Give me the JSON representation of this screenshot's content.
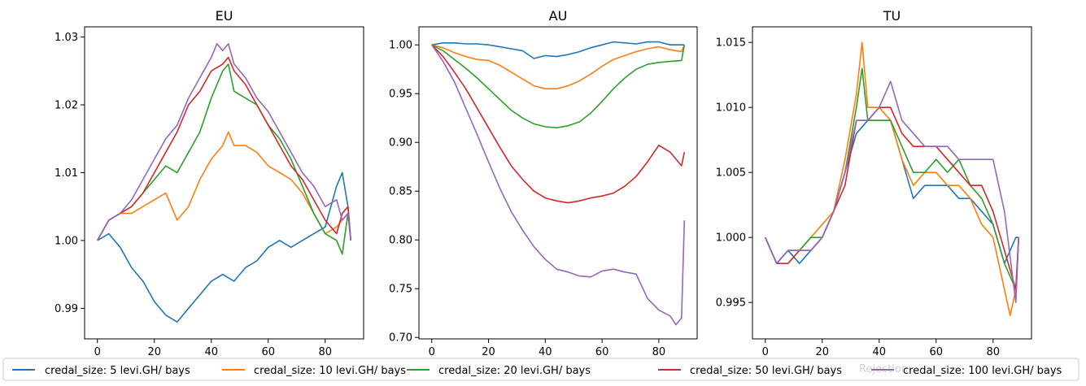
{
  "colors": [
    "#1f77b4",
    "#ff7f0e",
    "#2ca02c",
    "#d62728",
    "#9467bd"
  ],
  "legend": {
    "entries": [
      "credal_size: 5 levi.GH/ bays",
      "credal_size: 10 levi.GH/ bays",
      "credal_size: 20 levi.GH/ bays",
      "credal_size: 50 levi.GH/ bays",
      "credal_size: 100 levi.GH/ bays"
    ],
    "hidden_xlabel": "Rejection"
  },
  "chart_data": [
    {
      "type": "line",
      "title": "EU",
      "xlabel": "",
      "ylabel": "",
      "xlim": [
        -4.5,
        93.5
      ],
      "ylim": [
        0.9855,
        1.0315
      ],
      "xticks": [
        0,
        20,
        40,
        60,
        80
      ],
      "yticks": [
        0.99,
        1.0,
        1.01,
        1.02,
        1.03
      ],
      "ytick_labels": [
        "0.99",
        "1.00",
        "1.01",
        "1.02",
        "1.03"
      ],
      "grid": false,
      "series": [
        {
          "name": "credal_size: 5 levi.GH/ bays",
          "x": [
            0,
            4,
            8,
            12,
            16,
            20,
            24,
            28,
            32,
            36,
            40,
            44,
            48,
            52,
            56,
            60,
            64,
            68,
            72,
            76,
            80,
            84,
            86,
            88,
            89
          ],
          "y": [
            1.0,
            1.001,
            0.999,
            0.996,
            0.994,
            0.991,
            0.989,
            0.988,
            0.99,
            0.992,
            0.994,
            0.995,
            0.994,
            0.996,
            0.997,
            0.999,
            1.0,
            0.999,
            1.0,
            1.001,
            1.002,
            1.008,
            1.01,
            1.005,
            1.0
          ]
        },
        {
          "name": "credal_size: 10 levi.GH/ bays",
          "x": [
            0,
            4,
            8,
            12,
            16,
            20,
            24,
            28,
            32,
            36,
            40,
            44,
            46,
            48,
            52,
            56,
            60,
            64,
            68,
            72,
            76,
            80,
            84,
            86,
            88,
            89
          ],
          "y": [
            1.0,
            1.003,
            1.004,
            1.004,
            1.005,
            1.006,
            1.007,
            1.003,
            1.005,
            1.009,
            1.012,
            1.014,
            1.016,
            1.014,
            1.014,
            1.013,
            1.011,
            1.01,
            1.009,
            1.007,
            1.004,
            1.001,
            1.002,
            1.003,
            1.004,
            1.0
          ]
        },
        {
          "name": "credal_size: 20 levi.GH/ bays",
          "x": [
            0,
            4,
            8,
            12,
            16,
            20,
            24,
            28,
            32,
            36,
            40,
            44,
            46,
            48,
            52,
            56,
            60,
            64,
            68,
            72,
            76,
            80,
            84,
            86,
            88,
            89
          ],
          "y": [
            1.0,
            1.003,
            1.004,
            1.005,
            1.007,
            1.009,
            1.011,
            1.01,
            1.013,
            1.016,
            1.021,
            1.025,
            1.026,
            1.022,
            1.021,
            1.02,
            1.017,
            1.015,
            1.012,
            1.008,
            1.004,
            1.001,
            1.0,
            0.998,
            1.004,
            1.0
          ]
        },
        {
          "name": "credal_size: 50 levi.GH/ bays",
          "x": [
            0,
            4,
            8,
            12,
            16,
            20,
            24,
            28,
            32,
            36,
            40,
            44,
            46,
            48,
            52,
            56,
            60,
            64,
            68,
            72,
            76,
            80,
            84,
            86,
            88,
            89
          ],
          "y": [
            1.0,
            1.003,
            1.004,
            1.005,
            1.007,
            1.01,
            1.013,
            1.016,
            1.02,
            1.022,
            1.025,
            1.026,
            1.027,
            1.025,
            1.023,
            1.02,
            1.017,
            1.014,
            1.011,
            1.009,
            1.006,
            1.003,
            1.001,
            1.004,
            1.005,
            1.0
          ]
        },
        {
          "name": "credal_size: 100 levi.GH/ bays",
          "x": [
            0,
            4,
            8,
            12,
            16,
            20,
            24,
            28,
            32,
            36,
            40,
            42,
            44,
            46,
            48,
            52,
            56,
            60,
            64,
            68,
            72,
            76,
            80,
            84,
            86,
            88,
            89
          ],
          "y": [
            1.0,
            1.003,
            1.004,
            1.006,
            1.009,
            1.012,
            1.015,
            1.017,
            1.021,
            1.024,
            1.027,
            1.029,
            1.028,
            1.029,
            1.026,
            1.024,
            1.021,
            1.019,
            1.016,
            1.013,
            1.01,
            1.008,
            1.005,
            1.006,
            1.003,
            1.004,
            1.0
          ]
        }
      ]
    },
    {
      "type": "line",
      "title": "AU",
      "xlabel": "",
      "ylabel": "",
      "xlim": [
        -4.5,
        93.5
      ],
      "ylim": [
        0.6985,
        1.0185
      ],
      "xticks": [
        0,
        20,
        40,
        60,
        80
      ],
      "yticks": [
        0.7,
        0.75,
        0.8,
        0.85,
        0.9,
        0.95,
        1.0
      ],
      "ytick_labels": [
        "0.70",
        "0.75",
        "0.80",
        "0.85",
        "0.90",
        "0.95",
        "1.00"
      ],
      "grid": false,
      "series": [
        {
          "name": "credal_size: 5 levi.GH/ bays",
          "x": [
            0,
            4,
            8,
            12,
            16,
            20,
            24,
            28,
            32,
            36,
            40,
            44,
            48,
            52,
            56,
            60,
            64,
            68,
            72,
            76,
            80,
            84,
            88,
            89
          ],
          "y": [
            1.0,
            1.002,
            1.002,
            1.001,
            1.001,
            1.0,
            0.998,
            0.996,
            0.994,
            0.986,
            0.989,
            0.988,
            0.99,
            0.993,
            0.997,
            1.0,
            1.003,
            1.002,
            1.001,
            1.003,
            1.003,
            1.0,
            1.0,
            1.0
          ]
        },
        {
          "name": "credal_size: 10 levi.GH/ bays",
          "x": [
            0,
            4,
            8,
            12,
            16,
            20,
            24,
            28,
            32,
            36,
            40,
            44,
            48,
            52,
            56,
            60,
            64,
            68,
            72,
            76,
            80,
            84,
            88,
            89
          ],
          "y": [
            1.0,
            0.997,
            0.992,
            0.988,
            0.985,
            0.984,
            0.979,
            0.972,
            0.965,
            0.958,
            0.955,
            0.955,
            0.958,
            0.963,
            0.97,
            0.978,
            0.985,
            0.989,
            0.993,
            0.996,
            0.998,
            0.995,
            0.993,
            1.0
          ]
        },
        {
          "name": "credal_size: 20 levi.GH/ bays",
          "x": [
            0,
            4,
            8,
            12,
            16,
            20,
            24,
            28,
            32,
            36,
            40,
            44,
            48,
            52,
            56,
            60,
            64,
            68,
            72,
            76,
            80,
            84,
            88,
            89
          ],
          "y": [
            1.0,
            0.994,
            0.985,
            0.976,
            0.966,
            0.955,
            0.944,
            0.933,
            0.925,
            0.919,
            0.916,
            0.915,
            0.917,
            0.921,
            0.93,
            0.942,
            0.955,
            0.966,
            0.975,
            0.98,
            0.982,
            0.983,
            0.984,
            1.0
          ]
        },
        {
          "name": "credal_size: 50 levi.GH/ bays",
          "x": [
            0,
            4,
            8,
            12,
            16,
            20,
            24,
            28,
            32,
            36,
            40,
            44,
            48,
            52,
            56,
            60,
            64,
            68,
            72,
            76,
            80,
            84,
            88,
            89
          ],
          "y": [
            1.0,
            0.988,
            0.972,
            0.955,
            0.935,
            0.915,
            0.895,
            0.876,
            0.862,
            0.85,
            0.843,
            0.84,
            0.838,
            0.84,
            0.843,
            0.845,
            0.848,
            0.855,
            0.865,
            0.88,
            0.897,
            0.89,
            0.876,
            0.89
          ]
        },
        {
          "name": "credal_size: 100 levi.GH/ bays",
          "x": [
            0,
            4,
            8,
            12,
            16,
            20,
            24,
            28,
            32,
            36,
            40,
            44,
            48,
            52,
            56,
            60,
            64,
            68,
            72,
            76,
            80,
            84,
            86,
            88,
            89
          ],
          "y": [
            1.0,
            0.983,
            0.962,
            0.935,
            0.908,
            0.88,
            0.853,
            0.829,
            0.81,
            0.793,
            0.78,
            0.77,
            0.767,
            0.763,
            0.762,
            0.768,
            0.77,
            0.767,
            0.765,
            0.74,
            0.728,
            0.722,
            0.713,
            0.72,
            0.82
          ]
        }
      ]
    },
    {
      "type": "line",
      "title": "TU",
      "xlabel": "",
      "ylabel": "",
      "xlim": [
        -4.5,
        93.5
      ],
      "ylim": [
        0.9922,
        1.0162
      ],
      "xticks": [
        0,
        20,
        40,
        60,
        80
      ],
      "yticks": [
        0.995,
        1.0,
        1.005,
        1.01,
        1.015
      ],
      "ytick_labels": [
        "0.995",
        "1.000",
        "1.005",
        "1.010",
        "1.015"
      ],
      "grid": false,
      "series": [
        {
          "name": "credal_size: 5 levi.GH/ bays",
          "x": [
            0,
            4,
            8,
            12,
            16,
            20,
            24,
            28,
            32,
            36,
            40,
            44,
            48,
            52,
            56,
            60,
            64,
            68,
            72,
            76,
            80,
            84,
            88,
            89
          ],
          "y": [
            1.0,
            0.998,
            0.999,
            0.998,
            0.999,
            1.0,
            1.002,
            1.005,
            1.008,
            1.009,
            1.009,
            1.009,
            1.006,
            1.003,
            1.004,
            1.004,
            1.004,
            1.003,
            1.003,
            1.002,
            1.001,
            0.998,
            1.0,
            1.0
          ]
        },
        {
          "name": "credal_size: 10 levi.GH/ bays",
          "x": [
            0,
            4,
            8,
            12,
            16,
            20,
            24,
            28,
            32,
            34,
            36,
            40,
            44,
            48,
            52,
            56,
            60,
            64,
            68,
            72,
            76,
            80,
            84,
            86,
            88,
            89
          ],
          "y": [
            1.0,
            0.998,
            0.999,
            0.999,
            1.0,
            1.001,
            1.002,
            1.006,
            1.011,
            1.015,
            1.01,
            1.01,
            1.009,
            1.006,
            1.004,
            1.005,
            1.005,
            1.004,
            1.004,
            1.003,
            1.001,
            1.0,
            0.996,
            0.994,
            0.996,
            1.0
          ]
        },
        {
          "name": "credal_size: 20 levi.GH/ bays",
          "x": [
            0,
            4,
            8,
            12,
            16,
            20,
            24,
            28,
            32,
            34,
            36,
            40,
            44,
            48,
            52,
            56,
            60,
            64,
            68,
            72,
            76,
            80,
            84,
            88,
            89
          ],
          "y": [
            1.0,
            0.998,
            0.999,
            0.999,
            1.0,
            1.0,
            1.002,
            1.005,
            1.01,
            1.013,
            1.009,
            1.009,
            1.009,
            1.007,
            1.005,
            1.005,
            1.006,
            1.005,
            1.006,
            1.004,
            1.003,
            1.001,
            0.998,
            0.996,
            1.0
          ]
        },
        {
          "name": "credal_size: 50 levi.GH/ bays",
          "x": [
            0,
            4,
            8,
            12,
            16,
            20,
            24,
            28,
            32,
            36,
            40,
            44,
            48,
            52,
            56,
            60,
            64,
            68,
            72,
            76,
            80,
            84,
            88,
            89
          ],
          "y": [
            1.0,
            0.998,
            0.998,
            0.999,
            0.999,
            1.0,
            1.002,
            1.004,
            1.009,
            1.009,
            1.01,
            1.01,
            1.008,
            1.007,
            1.007,
            1.007,
            1.006,
            1.005,
            1.004,
            1.004,
            1.002,
            0.999,
            0.996,
            1.0
          ]
        },
        {
          "name": "credal_size: 100 levi.GH/ bays",
          "x": [
            0,
            4,
            8,
            12,
            16,
            20,
            24,
            28,
            32,
            36,
            40,
            44,
            48,
            52,
            56,
            60,
            64,
            68,
            72,
            76,
            80,
            84,
            88,
            89
          ],
          "y": [
            1.0,
            0.998,
            0.999,
            0.999,
            0.999,
            1.0,
            1.002,
            1.005,
            1.009,
            1.009,
            1.01,
            1.012,
            1.009,
            1.008,
            1.007,
            1.007,
            1.007,
            1.006,
            1.006,
            1.006,
            1.006,
            1.002,
            0.995,
            1.0
          ]
        }
      ]
    }
  ]
}
